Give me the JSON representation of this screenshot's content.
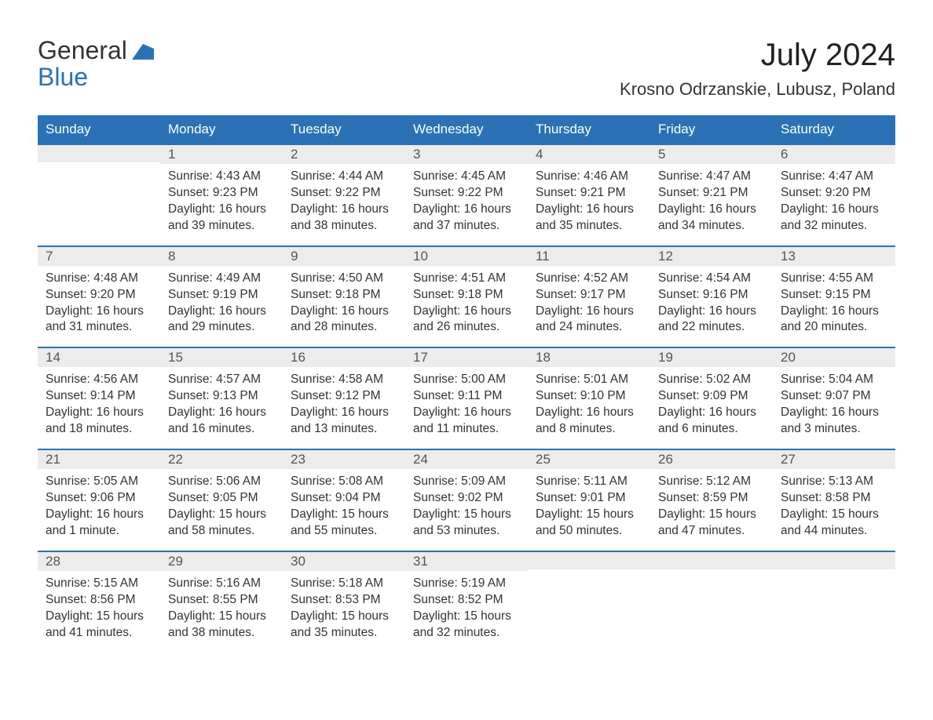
{
  "brand": {
    "line1": "General",
    "line2": "Blue"
  },
  "title": "July 2024",
  "location": "Krosno Odrzanskie, Lubusz, Poland",
  "colors": {
    "header_bg": "#2a72b5",
    "header_text": "#ffffff",
    "daynum_bg": "#ececec",
    "daynum_border": "#2a72b5",
    "body_text": "#333333",
    "page_bg": "#ffffff"
  },
  "dow": [
    "Sunday",
    "Monday",
    "Tuesday",
    "Wednesday",
    "Thursday",
    "Friday",
    "Saturday"
  ],
  "weeks": [
    [
      null,
      {
        "n": "1",
        "sr": "Sunrise: 4:43 AM",
        "ss": "Sunset: 9:23 PM",
        "d1": "Daylight: 16 hours",
        "d2": "and 39 minutes."
      },
      {
        "n": "2",
        "sr": "Sunrise: 4:44 AM",
        "ss": "Sunset: 9:22 PM",
        "d1": "Daylight: 16 hours",
        "d2": "and 38 minutes."
      },
      {
        "n": "3",
        "sr": "Sunrise: 4:45 AM",
        "ss": "Sunset: 9:22 PM",
        "d1": "Daylight: 16 hours",
        "d2": "and 37 minutes."
      },
      {
        "n": "4",
        "sr": "Sunrise: 4:46 AM",
        "ss": "Sunset: 9:21 PM",
        "d1": "Daylight: 16 hours",
        "d2": "and 35 minutes."
      },
      {
        "n": "5",
        "sr": "Sunrise: 4:47 AM",
        "ss": "Sunset: 9:21 PM",
        "d1": "Daylight: 16 hours",
        "d2": "and 34 minutes."
      },
      {
        "n": "6",
        "sr": "Sunrise: 4:47 AM",
        "ss": "Sunset: 9:20 PM",
        "d1": "Daylight: 16 hours",
        "d2": "and 32 minutes."
      }
    ],
    [
      {
        "n": "7",
        "sr": "Sunrise: 4:48 AM",
        "ss": "Sunset: 9:20 PM",
        "d1": "Daylight: 16 hours",
        "d2": "and 31 minutes."
      },
      {
        "n": "8",
        "sr": "Sunrise: 4:49 AM",
        "ss": "Sunset: 9:19 PM",
        "d1": "Daylight: 16 hours",
        "d2": "and 29 minutes."
      },
      {
        "n": "9",
        "sr": "Sunrise: 4:50 AM",
        "ss": "Sunset: 9:18 PM",
        "d1": "Daylight: 16 hours",
        "d2": "and 28 minutes."
      },
      {
        "n": "10",
        "sr": "Sunrise: 4:51 AM",
        "ss": "Sunset: 9:18 PM",
        "d1": "Daylight: 16 hours",
        "d2": "and 26 minutes."
      },
      {
        "n": "11",
        "sr": "Sunrise: 4:52 AM",
        "ss": "Sunset: 9:17 PM",
        "d1": "Daylight: 16 hours",
        "d2": "and 24 minutes."
      },
      {
        "n": "12",
        "sr": "Sunrise: 4:54 AM",
        "ss": "Sunset: 9:16 PM",
        "d1": "Daylight: 16 hours",
        "d2": "and 22 minutes."
      },
      {
        "n": "13",
        "sr": "Sunrise: 4:55 AM",
        "ss": "Sunset: 9:15 PM",
        "d1": "Daylight: 16 hours",
        "d2": "and 20 minutes."
      }
    ],
    [
      {
        "n": "14",
        "sr": "Sunrise: 4:56 AM",
        "ss": "Sunset: 9:14 PM",
        "d1": "Daylight: 16 hours",
        "d2": "and 18 minutes."
      },
      {
        "n": "15",
        "sr": "Sunrise: 4:57 AM",
        "ss": "Sunset: 9:13 PM",
        "d1": "Daylight: 16 hours",
        "d2": "and 16 minutes."
      },
      {
        "n": "16",
        "sr": "Sunrise: 4:58 AM",
        "ss": "Sunset: 9:12 PM",
        "d1": "Daylight: 16 hours",
        "d2": "and 13 minutes."
      },
      {
        "n": "17",
        "sr": "Sunrise: 5:00 AM",
        "ss": "Sunset: 9:11 PM",
        "d1": "Daylight: 16 hours",
        "d2": "and 11 minutes."
      },
      {
        "n": "18",
        "sr": "Sunrise: 5:01 AM",
        "ss": "Sunset: 9:10 PM",
        "d1": "Daylight: 16 hours",
        "d2": "and 8 minutes."
      },
      {
        "n": "19",
        "sr": "Sunrise: 5:02 AM",
        "ss": "Sunset: 9:09 PM",
        "d1": "Daylight: 16 hours",
        "d2": "and 6 minutes."
      },
      {
        "n": "20",
        "sr": "Sunrise: 5:04 AM",
        "ss": "Sunset: 9:07 PM",
        "d1": "Daylight: 16 hours",
        "d2": "and 3 minutes."
      }
    ],
    [
      {
        "n": "21",
        "sr": "Sunrise: 5:05 AM",
        "ss": "Sunset: 9:06 PM",
        "d1": "Daylight: 16 hours",
        "d2": "and 1 minute."
      },
      {
        "n": "22",
        "sr": "Sunrise: 5:06 AM",
        "ss": "Sunset: 9:05 PM",
        "d1": "Daylight: 15 hours",
        "d2": "and 58 minutes."
      },
      {
        "n": "23",
        "sr": "Sunrise: 5:08 AM",
        "ss": "Sunset: 9:04 PM",
        "d1": "Daylight: 15 hours",
        "d2": "and 55 minutes."
      },
      {
        "n": "24",
        "sr": "Sunrise: 5:09 AM",
        "ss": "Sunset: 9:02 PM",
        "d1": "Daylight: 15 hours",
        "d2": "and 53 minutes."
      },
      {
        "n": "25",
        "sr": "Sunrise: 5:11 AM",
        "ss": "Sunset: 9:01 PM",
        "d1": "Daylight: 15 hours",
        "d2": "and 50 minutes."
      },
      {
        "n": "26",
        "sr": "Sunrise: 5:12 AM",
        "ss": "Sunset: 8:59 PM",
        "d1": "Daylight: 15 hours",
        "d2": "and 47 minutes."
      },
      {
        "n": "27",
        "sr": "Sunrise: 5:13 AM",
        "ss": "Sunset: 8:58 PM",
        "d1": "Daylight: 15 hours",
        "d2": "and 44 minutes."
      }
    ],
    [
      {
        "n": "28",
        "sr": "Sunrise: 5:15 AM",
        "ss": "Sunset: 8:56 PM",
        "d1": "Daylight: 15 hours",
        "d2": "and 41 minutes."
      },
      {
        "n": "29",
        "sr": "Sunrise: 5:16 AM",
        "ss": "Sunset: 8:55 PM",
        "d1": "Daylight: 15 hours",
        "d2": "and 38 minutes."
      },
      {
        "n": "30",
        "sr": "Sunrise: 5:18 AM",
        "ss": "Sunset: 8:53 PM",
        "d1": "Daylight: 15 hours",
        "d2": "and 35 minutes."
      },
      {
        "n": "31",
        "sr": "Sunrise: 5:19 AM",
        "ss": "Sunset: 8:52 PM",
        "d1": "Daylight: 15 hours",
        "d2": "and 32 minutes."
      },
      null,
      null,
      null
    ]
  ]
}
